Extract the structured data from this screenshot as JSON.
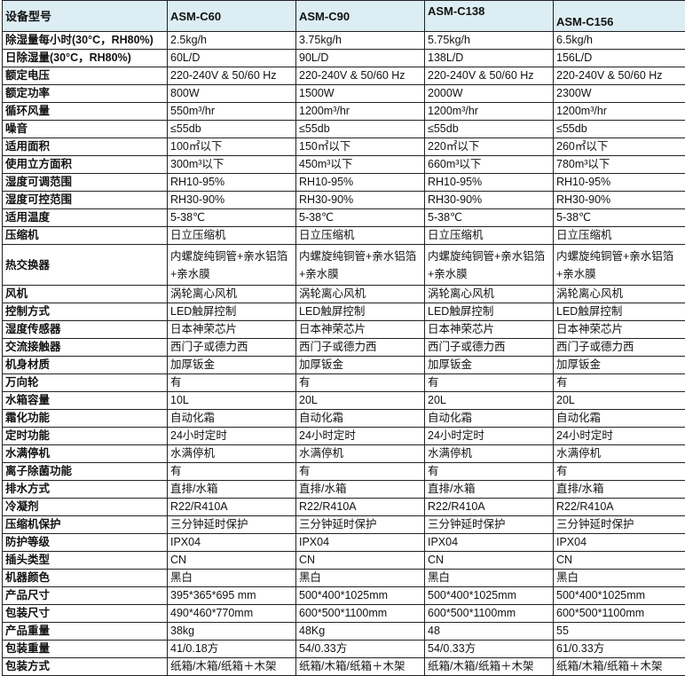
{
  "header": [
    "设备型号",
    "ASM-C60",
    "ASM-C90",
    "ASM-C138",
    "ASM-C156"
  ],
  "rows": [
    [
      "除湿量每小时(30°C，RH80%)",
      "2.5kg/h",
      "3.75kg/h",
      "5.75kg/h",
      "6.5kg/h"
    ],
    [
      "日除湿量(30°C，RH80%)",
      "60L/D",
      "90L/D",
      "138L/D",
      "156L/D"
    ],
    [
      "额定电压",
      "220-240V & 50/60 Hz",
      "220-240V & 50/60 Hz",
      "220-240V & 50/60 Hz",
      "220-240V & 50/60 Hz"
    ],
    [
      "额定功率",
      "800W",
      "1500W",
      "2000W",
      "2300W"
    ],
    [
      "循环风量",
      "550m³/hr",
      "1200m³/hr",
      "1200m³/hr",
      "1200m³/hr"
    ],
    [
      "噪音",
      "≤55db",
      "≤55db",
      "≤55db",
      "≤55db"
    ],
    [
      "适用面积",
      "100㎡以下",
      "150㎡以下",
      "220㎡以下",
      "260㎡以下"
    ],
    [
      "使用立方面积",
      "300m³以下",
      "450m³以下",
      "660m³以下",
      "780m³以下"
    ],
    [
      "湿度可调范围",
      "RH10-95%",
      "RH10-95%",
      "RH10-95%",
      "RH10-95%"
    ],
    [
      "湿度可控范围",
      "RH30-90%",
      "RH30-90%",
      "RH30-90%",
      "RH30-90%"
    ],
    [
      "适用温度",
      "5-38℃",
      "5-38℃",
      "5-38℃",
      "5-38℃"
    ],
    [
      "压缩机",
      "日立压缩机",
      "日立压缩机",
      "日立压缩机",
      "日立压缩机"
    ],
    [
      "热交换器",
      "内螺旋纯铜管+亲水铝箔+亲水膜",
      "内螺旋纯铜管+亲水铝箔+亲水膜",
      "内螺旋纯铜管+亲水铝箔+亲水膜",
      "内螺旋纯铜管+亲水铝箔+亲水膜"
    ],
    [
      "风机",
      "涡轮离心风机",
      "涡轮离心风机",
      "涡轮离心风机",
      "涡轮离心风机"
    ],
    [
      "控制方式",
      "LED触屏控制",
      "LED触屏控制",
      "LED触屏控制",
      "LED触屏控制"
    ],
    [
      "湿度传感器",
      "日本神荣芯片",
      "日本神荣芯片",
      "日本神荣芯片",
      "日本神荣芯片"
    ],
    [
      "交流接触器",
      "西门子或德力西",
      "西门子或德力西",
      "西门子或德力西",
      "西门子或德力西"
    ],
    [
      "机身材质",
      "加厚钣金",
      "加厚钣金",
      "加厚钣金",
      "加厚钣金"
    ],
    [
      "万向轮",
      "有",
      "有",
      "有",
      "有"
    ],
    [
      "水箱容量",
      "10L",
      "20L",
      "20L",
      "20L"
    ],
    [
      "霜化功能",
      "自动化霜",
      "自动化霜",
      "自动化霜",
      "自动化霜"
    ],
    [
      "定时功能",
      "24小时定时",
      "24小时定时",
      "24小时定时",
      "24小时定时"
    ],
    [
      "水满停机",
      "水满停机",
      "水满停机",
      "水满停机",
      "水满停机"
    ],
    [
      "离子除菌功能",
      "有",
      "有",
      "有",
      "有"
    ],
    [
      "排水方式",
      "直排/水箱",
      "直排/水箱",
      "直排/水箱",
      "直排/水箱"
    ],
    [
      "冷凝剂",
      "R22/R410A",
      "R22/R410A",
      "R22/R410A",
      "R22/R410A"
    ],
    [
      "压缩机保护",
      "三分钟延时保护",
      "三分钟延时保护",
      "三分钟延时保护",
      "三分钟延时保护"
    ],
    [
      "防护等级",
      "IPX04",
      "IPX04",
      "IPX04",
      "IPX04"
    ],
    [
      "插头类型",
      "CN",
      "CN",
      "CN",
      "CN"
    ],
    [
      "机器颜色",
      "黑白",
      "黑白",
      "黑白",
      "黑白"
    ],
    [
      "产品尺寸",
      "395*365*695 mm",
      "500*400*1025mm",
      "500*400*1025mm",
      "500*400*1025mm"
    ],
    [
      "包装尺寸",
      "490*460*770mm",
      "600*500*1100mm",
      "600*500*1100mm",
      "600*500*1100mm"
    ],
    [
      "产品重量",
      "38kg",
      "48Kg",
      "48",
      "55"
    ],
    [
      "包装重量",
      "41/0.18方",
      "54/0.33方",
      "54/0.33方",
      "61/0.33方"
    ],
    [
      "包装方式",
      "纸箱/木箱/纸箱＋木架",
      "纸箱/木箱/纸箱＋木架",
      "纸箱/木箱/纸箱＋木架",
      "纸箱/木箱/纸箱＋木架"
    ]
  ],
  "colors": {
    "header_bg": "#dcedf3",
    "border": "#222222"
  }
}
